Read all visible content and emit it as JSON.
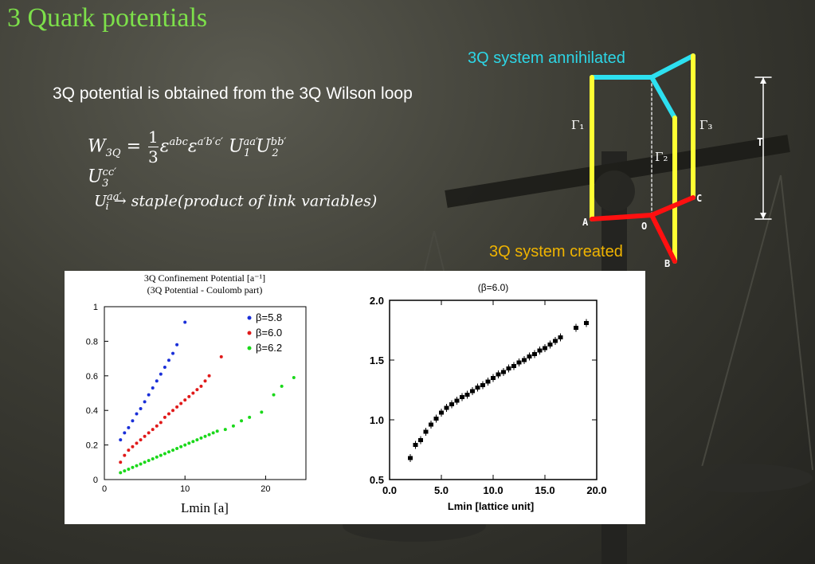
{
  "slide": {
    "title": "3 Quark potentials",
    "lead": "3Q potential is obtained from the 3Q Wilson loop",
    "equation": {
      "lhs_symbol": "W",
      "lhs_sub": "3Q",
      "equals": "=",
      "frac_num": "1",
      "frac_den": "3",
      "eps1": "ε",
      "eps1_sup": "abc",
      "eps2": "ε",
      "eps2_sup": "a′b′c′",
      "u1": "U",
      "u1_sup": "aa′",
      "u1_sub": "1",
      "u2": "U",
      "u2_sup": "bb′",
      "u2_sub": "2",
      "u3": "U",
      "u3_sup": "cc′",
      "u3_sub": "3"
    },
    "staple": {
      "u": "U",
      "u_sup": "aa′",
      "u_sub": "i",
      "text": "→ staple(product of link variables)"
    }
  },
  "diagram": {
    "annihilated_label": "3Q system annihilated",
    "created_label": "3Q system created",
    "gamma1": "Γ₁",
    "gamma2": "Γ₂",
    "gamma3": "Γ₃",
    "point_a": "A",
    "point_b": "B",
    "point_c": "C",
    "point_o": "O",
    "time_label": "T",
    "colors": {
      "annihilated": "#2dd6e6",
      "created": "#f0b400",
      "links": "#ffff33",
      "spatial_bottom": "#ff1010",
      "spatial_top": "#2de0f0"
    }
  },
  "chart_data": [
    {
      "type": "scatter",
      "title": "3Q Confinement Potential [a⁻¹]",
      "subtitle": "(3Q Potential - Coulomb part)",
      "xlabel": "Lmin [a]",
      "ylabel": "",
      "xlim": [
        0,
        25
      ],
      "ylim": [
        0,
        1
      ],
      "xticks": [
        0,
        10,
        20
      ],
      "yticks": [
        0,
        0.2,
        0.4,
        0.6,
        0.8,
        1
      ],
      "legend_position": "top-right",
      "series": [
        {
          "name": "β=5.8",
          "color": "#1a2fd8",
          "x": [
            2.0,
            2.5,
            3.0,
            3.5,
            4.0,
            4.5,
            5.0,
            5.5,
            6.0,
            6.5,
            7.0,
            7.5,
            8.0,
            8.5,
            9.0,
            10.0
          ],
          "y": [
            0.23,
            0.27,
            0.3,
            0.34,
            0.38,
            0.41,
            0.45,
            0.49,
            0.53,
            0.57,
            0.61,
            0.65,
            0.69,
            0.73,
            0.78,
            0.91
          ]
        },
        {
          "name": "β=6.0",
          "color": "#e01a1a",
          "x": [
            2,
            2.5,
            3,
            3.5,
            4,
            4.5,
            5,
            5.5,
            6,
            6.5,
            7,
            7.5,
            8,
            8.5,
            9,
            9.5,
            10,
            10.5,
            11,
            11.5,
            12,
            12.5,
            13,
            14.5
          ],
          "y": [
            0.1,
            0.14,
            0.17,
            0.19,
            0.21,
            0.23,
            0.25,
            0.27,
            0.29,
            0.31,
            0.33,
            0.36,
            0.38,
            0.4,
            0.42,
            0.44,
            0.46,
            0.48,
            0.5,
            0.52,
            0.54,
            0.57,
            0.6,
            0.71
          ]
        },
        {
          "name": "β=6.2",
          "color": "#1ad81a",
          "x": [
            2,
            2.5,
            3,
            3.5,
            4,
            4.5,
            5,
            5.5,
            6,
            6.5,
            7,
            7.5,
            8,
            8.5,
            9,
            9.5,
            10,
            10.5,
            11,
            11.5,
            12,
            12.5,
            13,
            13.5,
            14,
            15,
            16,
            17,
            18,
            19.5,
            21,
            22,
            23.5
          ],
          "y": [
            0.04,
            0.05,
            0.06,
            0.07,
            0.08,
            0.09,
            0.1,
            0.11,
            0.12,
            0.13,
            0.14,
            0.15,
            0.16,
            0.17,
            0.18,
            0.19,
            0.2,
            0.21,
            0.22,
            0.23,
            0.24,
            0.25,
            0.26,
            0.27,
            0.28,
            0.29,
            0.31,
            0.34,
            0.36,
            0.39,
            0.49,
            0.54,
            0.59
          ]
        }
      ]
    },
    {
      "type": "scatter",
      "title": "(β=6.0)",
      "xlabel": "Lmin [lattice unit]",
      "ylabel": "",
      "xlim": [
        0,
        20
      ],
      "ylim": [
        0.5,
        2.0
      ],
      "xticks": [
        "0.0",
        "5.0",
        "10.0",
        "15.0",
        "20.0"
      ],
      "yticks": [
        "0.5",
        "1.0",
        "1.5",
        "2.0"
      ],
      "series": [
        {
          "name": "",
          "color": "#000000",
          "x": [
            2.0,
            2.5,
            3.0,
            3.5,
            4.0,
            4.5,
            5.0,
            5.5,
            6.0,
            6.5,
            7.0,
            7.5,
            8.0,
            8.5,
            9.0,
            9.5,
            10.0,
            10.5,
            11.0,
            11.5,
            12.0,
            12.5,
            13.0,
            13.5,
            14.0,
            14.5,
            15.0,
            15.5,
            16.0,
            16.5,
            18.0,
            19.0
          ],
          "y": [
            0.68,
            0.79,
            0.83,
            0.9,
            0.96,
            1.01,
            1.06,
            1.1,
            1.13,
            1.16,
            1.19,
            1.21,
            1.24,
            1.27,
            1.29,
            1.32,
            1.35,
            1.38,
            1.4,
            1.43,
            1.45,
            1.48,
            1.5,
            1.53,
            1.55,
            1.58,
            1.6,
            1.63,
            1.66,
            1.69,
            1.77,
            1.81
          ]
        }
      ]
    }
  ]
}
